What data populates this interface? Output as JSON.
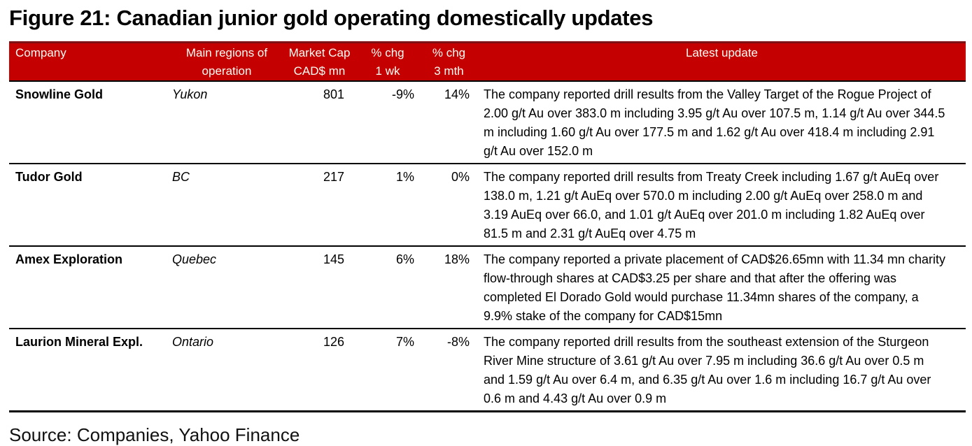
{
  "figure": {
    "title": "Figure 21: Canadian junior gold operating domestically updates",
    "source": "Source: Companies, Yahoo Finance"
  },
  "colors": {
    "header_bg": "#C40000",
    "header_top_border": "#7E1113",
    "header_text": "#FFFEF6",
    "row_divider": "#000000"
  },
  "table": {
    "header": {
      "company": "Company",
      "region": [
        "Main regions of",
        "operation"
      ],
      "market_cap": [
        "Market Cap",
        "CAD$ mn"
      ],
      "chg_1wk": [
        "% chg",
        "1 wk"
      ],
      "chg_3mth": [
        "% chg",
        "3 mth"
      ],
      "latest_update": "Latest update"
    },
    "rows": [
      {
        "company": "Snowline Gold",
        "region": "Yukon",
        "market_cap": "801",
        "chg_1wk": "-9%",
        "chg_3mth": "14%",
        "update": "The company reported drill results from the Valley Target of the Rogue Project of 2.00 g/t Au over 383.0 m including 3.95 g/t Au over 107.5 m, 1.14 g/t Au over 344.5 m including 1.60 g/t Au over 177.5 m and 1.62 g/t Au over 418.4 m including 2.91 g/t Au over 152.0 m"
      },
      {
        "company": "Tudor Gold",
        "region": "BC",
        "market_cap": "217",
        "chg_1wk": "1%",
        "chg_3mth": "0%",
        "update": "The company reported drill results from Treaty Creek including 1.67 g/t AuEq over 138.0 m, 1.21 g/t AuEq over 570.0 m including 2.00 g/t AuEq over 258.0 m and 3.19 AuEq over 66.0, and 1.01 g/t AuEq over 201.0 m including 1.82 AuEq over 81.5 m and 2.31 g/t AuEq over 4.75 m"
      },
      {
        "company": "Amex Exploration",
        "region": "Quebec",
        "market_cap": "145",
        "chg_1wk": "6%",
        "chg_3mth": "18%",
        "update": "The company reported a private placement of CAD$26.65mn with 11.34 mn charity flow-through shares at CAD$3.25 per share and that after the offering was completed El Dorado Gold would purchase 11.34mn shares of the company, a 9.9% stake of the company for CAD$15mn"
      },
      {
        "company": "Laurion Mineral Expl.",
        "region": "Ontario",
        "market_cap": "126",
        "chg_1wk": "7%",
        "chg_3mth": "-8%",
        "update": "The company reported drill results from the southeast extension of the Sturgeon River Mine structure of 3.61 g/t Au over 7.95 m including 36.6 g/t Au over 0.5 m and 1.59 g/t Au over 6.4 m, and 6.35 g/t Au over 1.6 m including 16.7 g/t Au over 0.6 m and 4.43 g/t Au over 0.9 m"
      }
    ]
  }
}
